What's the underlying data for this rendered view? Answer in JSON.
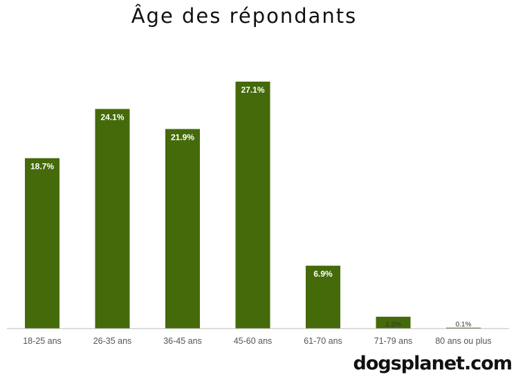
{
  "chart_data": {
    "type": "bar",
    "title": "Âge des répondants",
    "categories": [
      "18-25 ans",
      "26-35 ans",
      "36-45 ans",
      "45-60 ans",
      "61-70 ans",
      "71-79 ans",
      "80 ans ou plus"
    ],
    "values": [
      18.7,
      24.1,
      21.9,
      27.1,
      6.9,
      1.3,
      0.1
    ],
    "data_labels": [
      "18.7%",
      "24.1%",
      "21.9%",
      "27.1%",
      "6.9%",
      "1.3%",
      "0.1%"
    ],
    "ylim": [
      0,
      27.1
    ],
    "xlabel": "",
    "ylabel": "",
    "grid": false,
    "legend": "none",
    "bar_color": "#456a0a",
    "label_color_inside": "#ffffff",
    "label_color_outside": "#333333"
  },
  "branding": {
    "logo_text": "dogsplanet.com"
  }
}
